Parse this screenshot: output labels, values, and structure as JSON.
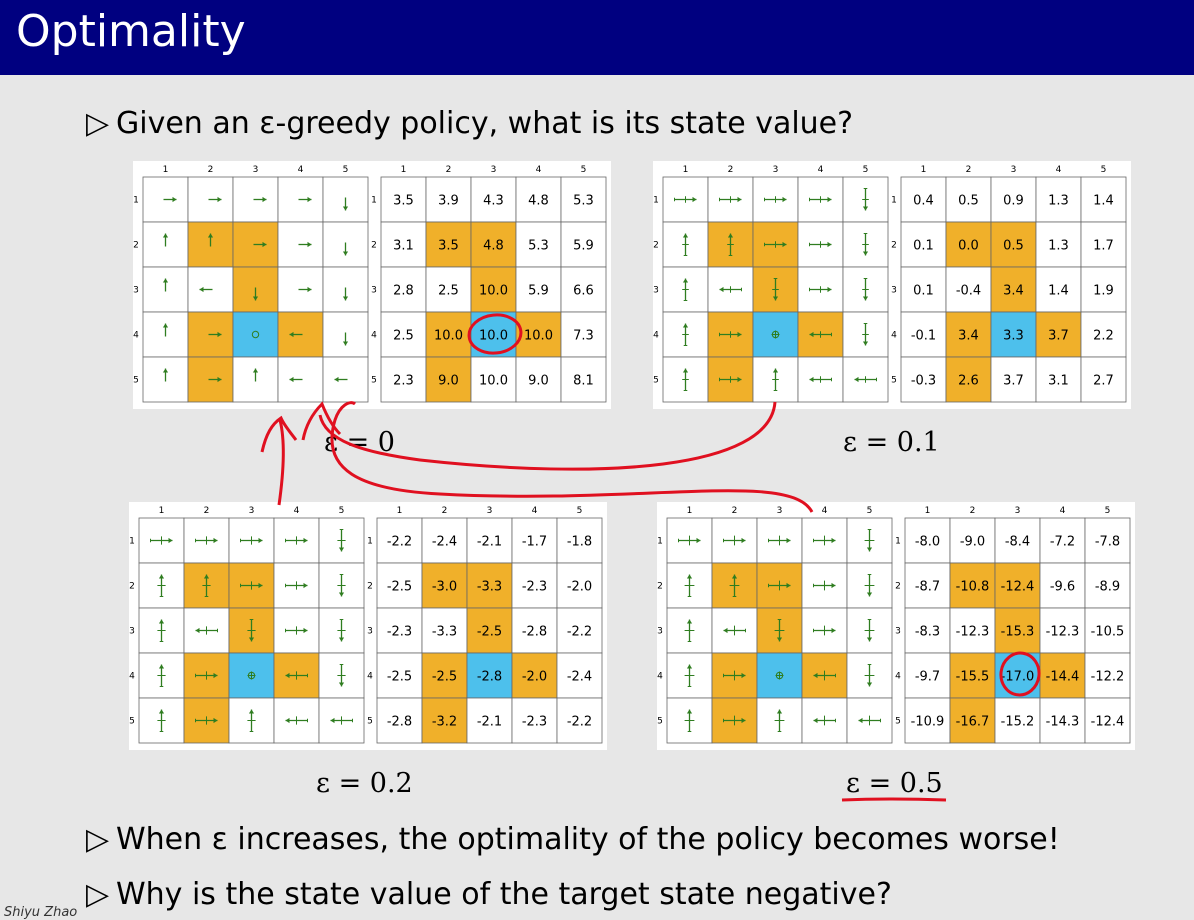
{
  "slide": {
    "title": "Optimality",
    "bullet1": "Given an ε-greedy policy, what is its state value?",
    "bullet2": "When ε increases, the optimality of the policy becomes worse!",
    "bullet3": "Why is the state value of the target state negative?",
    "bullet_marker": "▷",
    "footer": "Shiyu Zhao"
  },
  "colors": {
    "title_bg": "#000080",
    "forbidden": "#f0b02a",
    "target": "#4dc0ec",
    "arrow": "#2f7d20",
    "annotation": "#e01020"
  },
  "grid": {
    "col_labels": [
      "1",
      "2",
      "3",
      "4",
      "5"
    ],
    "row_labels": [
      "1",
      "2",
      "3",
      "4",
      "5"
    ],
    "forbidden_cells": [
      [
        2,
        2
      ],
      [
        2,
        3
      ],
      [
        3,
        3
      ],
      [
        4,
        2
      ],
      [
        4,
        4
      ],
      [
        5,
        2
      ]
    ],
    "target_cell": [
      4,
      3
    ]
  },
  "panels": [
    {
      "caption": "ε = 0",
      "policy": [
        [
          "right",
          "right",
          "right",
          "right",
          "down"
        ],
        [
          "up",
          "up",
          "right",
          "right",
          "down"
        ],
        [
          "up",
          "left",
          "down",
          "right",
          "down"
        ],
        [
          "up",
          "right",
          "stay",
          "left",
          "down"
        ],
        [
          "up",
          "right",
          "up",
          "left",
          "left"
        ]
      ],
      "values": [
        [
          "3.5",
          "3.9",
          "4.3",
          "4.8",
          "5.3"
        ],
        [
          "3.1",
          "3.5",
          "4.8",
          "5.3",
          "5.9"
        ],
        [
          "2.8",
          "2.5",
          "10.0",
          "5.9",
          "6.6"
        ],
        [
          "2.5",
          "10.0",
          "10.0",
          "10.0",
          "7.3"
        ],
        [
          "2.3",
          "9.0",
          "10.0",
          "9.0",
          "8.1"
        ]
      ]
    },
    {
      "caption": "ε = 0.1",
      "policy": [
        [
          "right",
          "right",
          "right",
          "right",
          "down"
        ],
        [
          "up",
          "up",
          "right",
          "right",
          "down"
        ],
        [
          "up",
          "left",
          "down",
          "right",
          "down"
        ],
        [
          "up",
          "right",
          "stay",
          "left",
          "down"
        ],
        [
          "up",
          "right",
          "up",
          "left",
          "left"
        ]
      ],
      "values": [
        [
          "0.4",
          "0.5",
          "0.9",
          "1.3",
          "1.4"
        ],
        [
          "0.1",
          "0.0",
          "0.5",
          "1.3",
          "1.7"
        ],
        [
          "0.1",
          "-0.4",
          "3.4",
          "1.4",
          "1.9"
        ],
        [
          "-0.1",
          "3.4",
          "3.3",
          "3.7",
          "2.2"
        ],
        [
          "-0.3",
          "2.6",
          "3.7",
          "3.1",
          "2.7"
        ]
      ]
    },
    {
      "caption": "ε = 0.2",
      "policy": [
        [
          "right",
          "right",
          "right",
          "right",
          "down"
        ],
        [
          "up",
          "up",
          "right",
          "right",
          "down"
        ],
        [
          "up",
          "left",
          "down",
          "right",
          "down"
        ],
        [
          "up",
          "right",
          "stay",
          "left",
          "down"
        ],
        [
          "up",
          "right",
          "up",
          "left",
          "left"
        ]
      ],
      "values": [
        [
          "-2.2",
          "-2.4",
          "-2.1",
          "-1.7",
          "-1.8"
        ],
        [
          "-2.5",
          "-3.0",
          "-3.3",
          "-2.3",
          "-2.0"
        ],
        [
          "-2.3",
          "-3.3",
          "-2.5",
          "-2.8",
          "-2.2"
        ],
        [
          "-2.5",
          "-2.5",
          "-2.8",
          "-2.0",
          "-2.4"
        ],
        [
          "-2.8",
          "-3.2",
          "-2.1",
          "-2.3",
          "-2.2"
        ]
      ]
    },
    {
      "caption": "ε = 0.5",
      "policy": [
        [
          "right",
          "right",
          "right",
          "right",
          "down"
        ],
        [
          "up",
          "up",
          "right",
          "right",
          "down"
        ],
        [
          "up",
          "left",
          "down",
          "right",
          "down"
        ],
        [
          "up",
          "right",
          "stay",
          "left",
          "down"
        ],
        [
          "up",
          "right",
          "up",
          "left",
          "left"
        ]
      ],
      "values": [
        [
          "-8.0",
          "-9.0",
          "-8.4",
          "-7.2",
          "-7.8"
        ],
        [
          "-8.7",
          "-10.8",
          "-12.4",
          "-9.6",
          "-8.9"
        ],
        [
          "-8.3",
          "-12.3",
          "-15.3",
          "-12.3",
          "-10.5"
        ],
        [
          "-9.7",
          "-15.5",
          "-17.0",
          "-14.4",
          "-12.2"
        ],
        [
          "-10.9",
          "-16.7",
          "-15.2",
          "-14.3",
          "-12.4"
        ]
      ]
    }
  ]
}
